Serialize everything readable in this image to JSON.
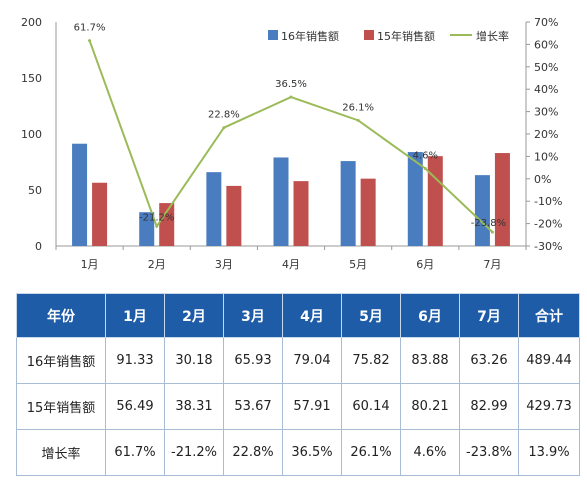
{
  "chart_data": {
    "type": "bar",
    "categories": [
      "1月",
      "2月",
      "3月",
      "4月",
      "5月",
      "6月",
      "7月"
    ],
    "series": [
      {
        "name": "16年销售额",
        "kind": "bar",
        "axis": "left",
        "color": "#4a7dc0",
        "values": [
          91.33,
          30.18,
          65.93,
          79.04,
          75.82,
          83.88,
          63.26
        ]
      },
      {
        "name": "15年销售额",
        "kind": "bar",
        "axis": "left",
        "color": "#c0504d",
        "values": [
          56.49,
          38.31,
          53.67,
          57.91,
          60.14,
          80.21,
          82.99
        ]
      },
      {
        "name": "增长率",
        "kind": "line",
        "axis": "right",
        "color": "#9bbb59",
        "values": [
          61.7,
          -21.2,
          22.8,
          36.5,
          26.1,
          4.6,
          -23.8
        ],
        "labels": [
          "61.7%",
          "-21.2%",
          "22.8%",
          "36.5%",
          "26.1%",
          "4.6%",
          "-23.8%"
        ]
      }
    ],
    "y_left": {
      "min": 0,
      "max": 200,
      "ticks": [
        "0",
        "50",
        "100",
        "150",
        "200"
      ]
    },
    "y_right": {
      "min": -30,
      "max": 70,
      "ticks": [
        "-30%",
        "-20%",
        "-10%",
        "0%",
        "10%",
        "20%",
        "30%",
        "40%",
        "50%",
        "60%",
        "70%"
      ]
    },
    "legend_position": "top-right",
    "grid": false
  },
  "table": {
    "headers": [
      "年份",
      "1月",
      "2月",
      "3月",
      "4月",
      "5月",
      "6月",
      "7月",
      "合计"
    ],
    "rows": [
      [
        "16年销售额",
        "91.33",
        "30.18",
        "65.93",
        "79.04",
        "75.82",
        "83.88",
        "63.26",
        "489.44"
      ],
      [
        "15年销售额",
        "56.49",
        "38.31",
        "53.67",
        "57.91",
        "60.14",
        "80.21",
        "82.99",
        "429.73"
      ],
      [
        "增长率",
        "61.7%",
        "-21.2%",
        "22.8%",
        "36.5%",
        "26.1%",
        "4.6%",
        "-23.8%",
        "13.9%"
      ]
    ]
  }
}
